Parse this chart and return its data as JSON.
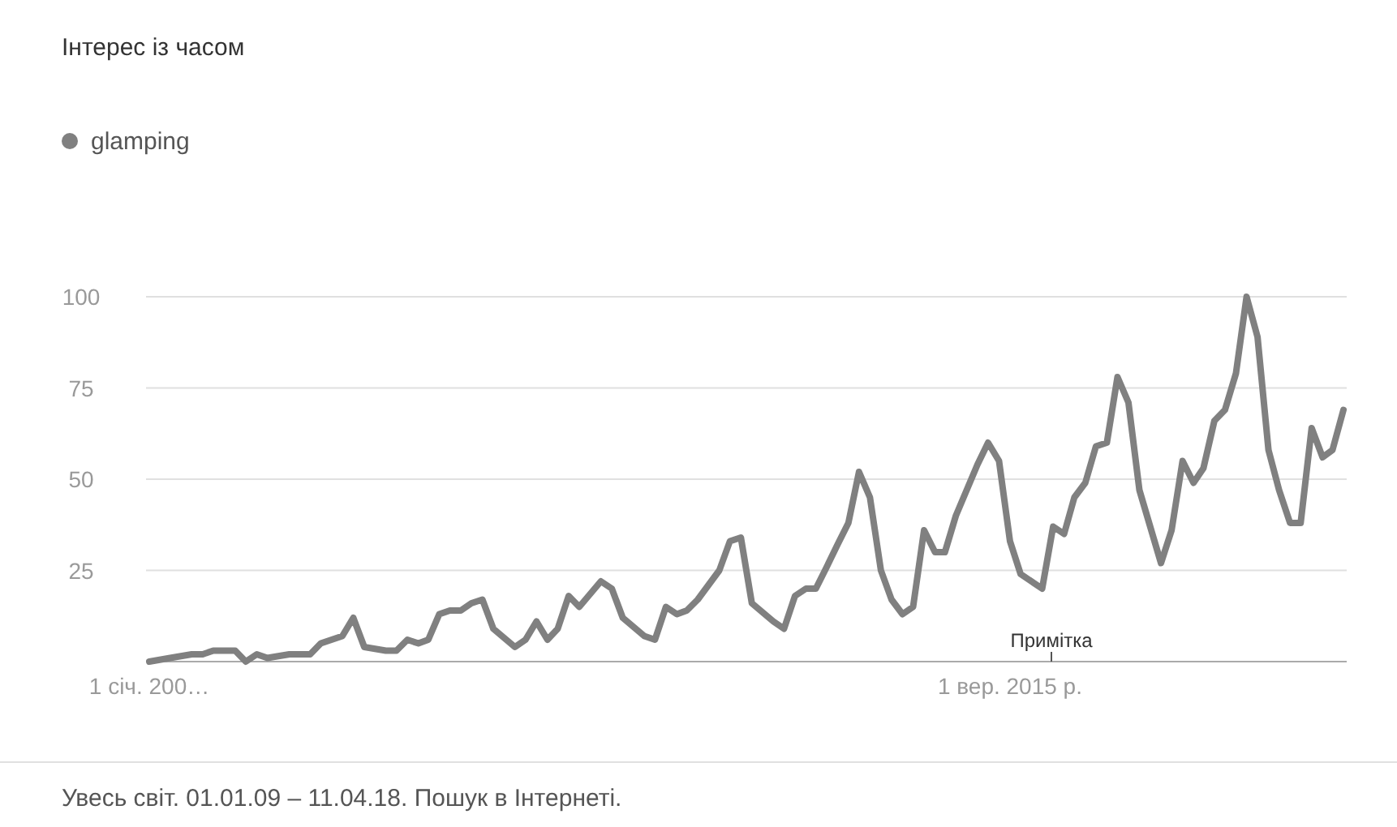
{
  "chart_data": {
    "type": "line",
    "title": "Інтерес із часом",
    "annotations": [
      "Увесь світ. 01.01.09 – 11.04.18. Пошук в Інтернеті.",
      "Примітка"
    ],
    "x": [
      "2009-01",
      "2009-03",
      "2009-05",
      "2009-06",
      "2009-07",
      "2009-09",
      "2009-10",
      "2009-11",
      "2009-12",
      "2010-02",
      "2010-04",
      "2010-05",
      "2010-07",
      "2010-08",
      "2010-09",
      "2010-11",
      "2010-12",
      "2011-01",
      "2011-02",
      "2011-03",
      "2011-04",
      "2011-05",
      "2011-06",
      "2011-07",
      "2011-08",
      "2011-09",
      "2011-11",
      "2011-12",
      "2012-01",
      "2012-02",
      "2012-03",
      "2012-04",
      "2012-05",
      "2012-07",
      "2012-08",
      "2012-09",
      "2012-11",
      "2012-12",
      "2013-01",
      "2013-02",
      "2013-03",
      "2013-04",
      "2013-06",
      "2013-07",
      "2013-08",
      "2013-09",
      "2013-11",
      "2013-12",
      "2014-01",
      "2014-02",
      "2014-03",
      "2014-04",
      "2014-05",
      "2014-06",
      "2014-07",
      "2014-08",
      "2014-09",
      "2014-10",
      "2014-11",
      "2014-12",
      "2015-01",
      "2015-02",
      "2015-03",
      "2015-04",
      "2015-06",
      "2015-07",
      "2015-08",
      "2015-09",
      "2015-10",
      "2015-12",
      "2016-01",
      "2016-02",
      "2016-03",
      "2016-04",
      "2016-05",
      "2016-06",
      "2016-07",
      "2016-08",
      "2016-09",
      "2016-11",
      "2016-12",
      "2017-01",
      "2017-02",
      "2017-03",
      "2017-04",
      "2017-05",
      "2017-06",
      "2017-07",
      "2017-08",
      "2017-09",
      "2017-10",
      "2017-11",
      "2017-12",
      "2018-01",
      "2018-02",
      "2018-03",
      "2018-04"
    ],
    "series": [
      {
        "name": "glamping",
        "color": "#808080",
        "values": [
          0,
          1,
          2,
          2,
          3,
          3,
          0,
          2,
          1,
          2,
          2,
          5,
          7,
          12,
          4,
          3,
          3,
          6,
          5,
          6,
          13,
          14,
          14,
          16,
          17,
          9,
          4,
          6,
          11,
          6,
          9,
          18,
          15,
          22,
          20,
          12,
          7,
          6,
          15,
          13,
          14,
          17,
          25,
          33,
          34,
          16,
          11,
          9,
          18,
          20,
          20,
          26,
          32,
          38,
          52,
          45,
          25,
          17,
          13,
          15,
          36,
          30,
          30,
          40,
          54,
          60,
          55,
          33,
          24,
          20,
          37,
          35,
          45,
          49,
          59,
          60,
          78,
          71,
          47,
          27,
          36,
          55,
          49,
          53,
          66,
          69,
          79,
          100,
          89,
          58,
          47,
          38,
          38,
          64,
          56,
          58,
          69
        ]
      }
    ],
    "xlim": [
      "2009-01",
      "2018-04"
    ],
    "xticks": [
      {
        "value": "2009-01",
        "label": "1 січ. 200…"
      },
      {
        "value": "2015-09",
        "label": "1 вер. 2015 р."
      }
    ],
    "ylim": [
      0,
      100
    ],
    "yticks": [
      {
        "value": 0,
        "label": null
      },
      25,
      50,
      75,
      100
    ],
    "grid": "y",
    "legend": "top left",
    "marker": "none",
    "line_style": "solid"
  }
}
